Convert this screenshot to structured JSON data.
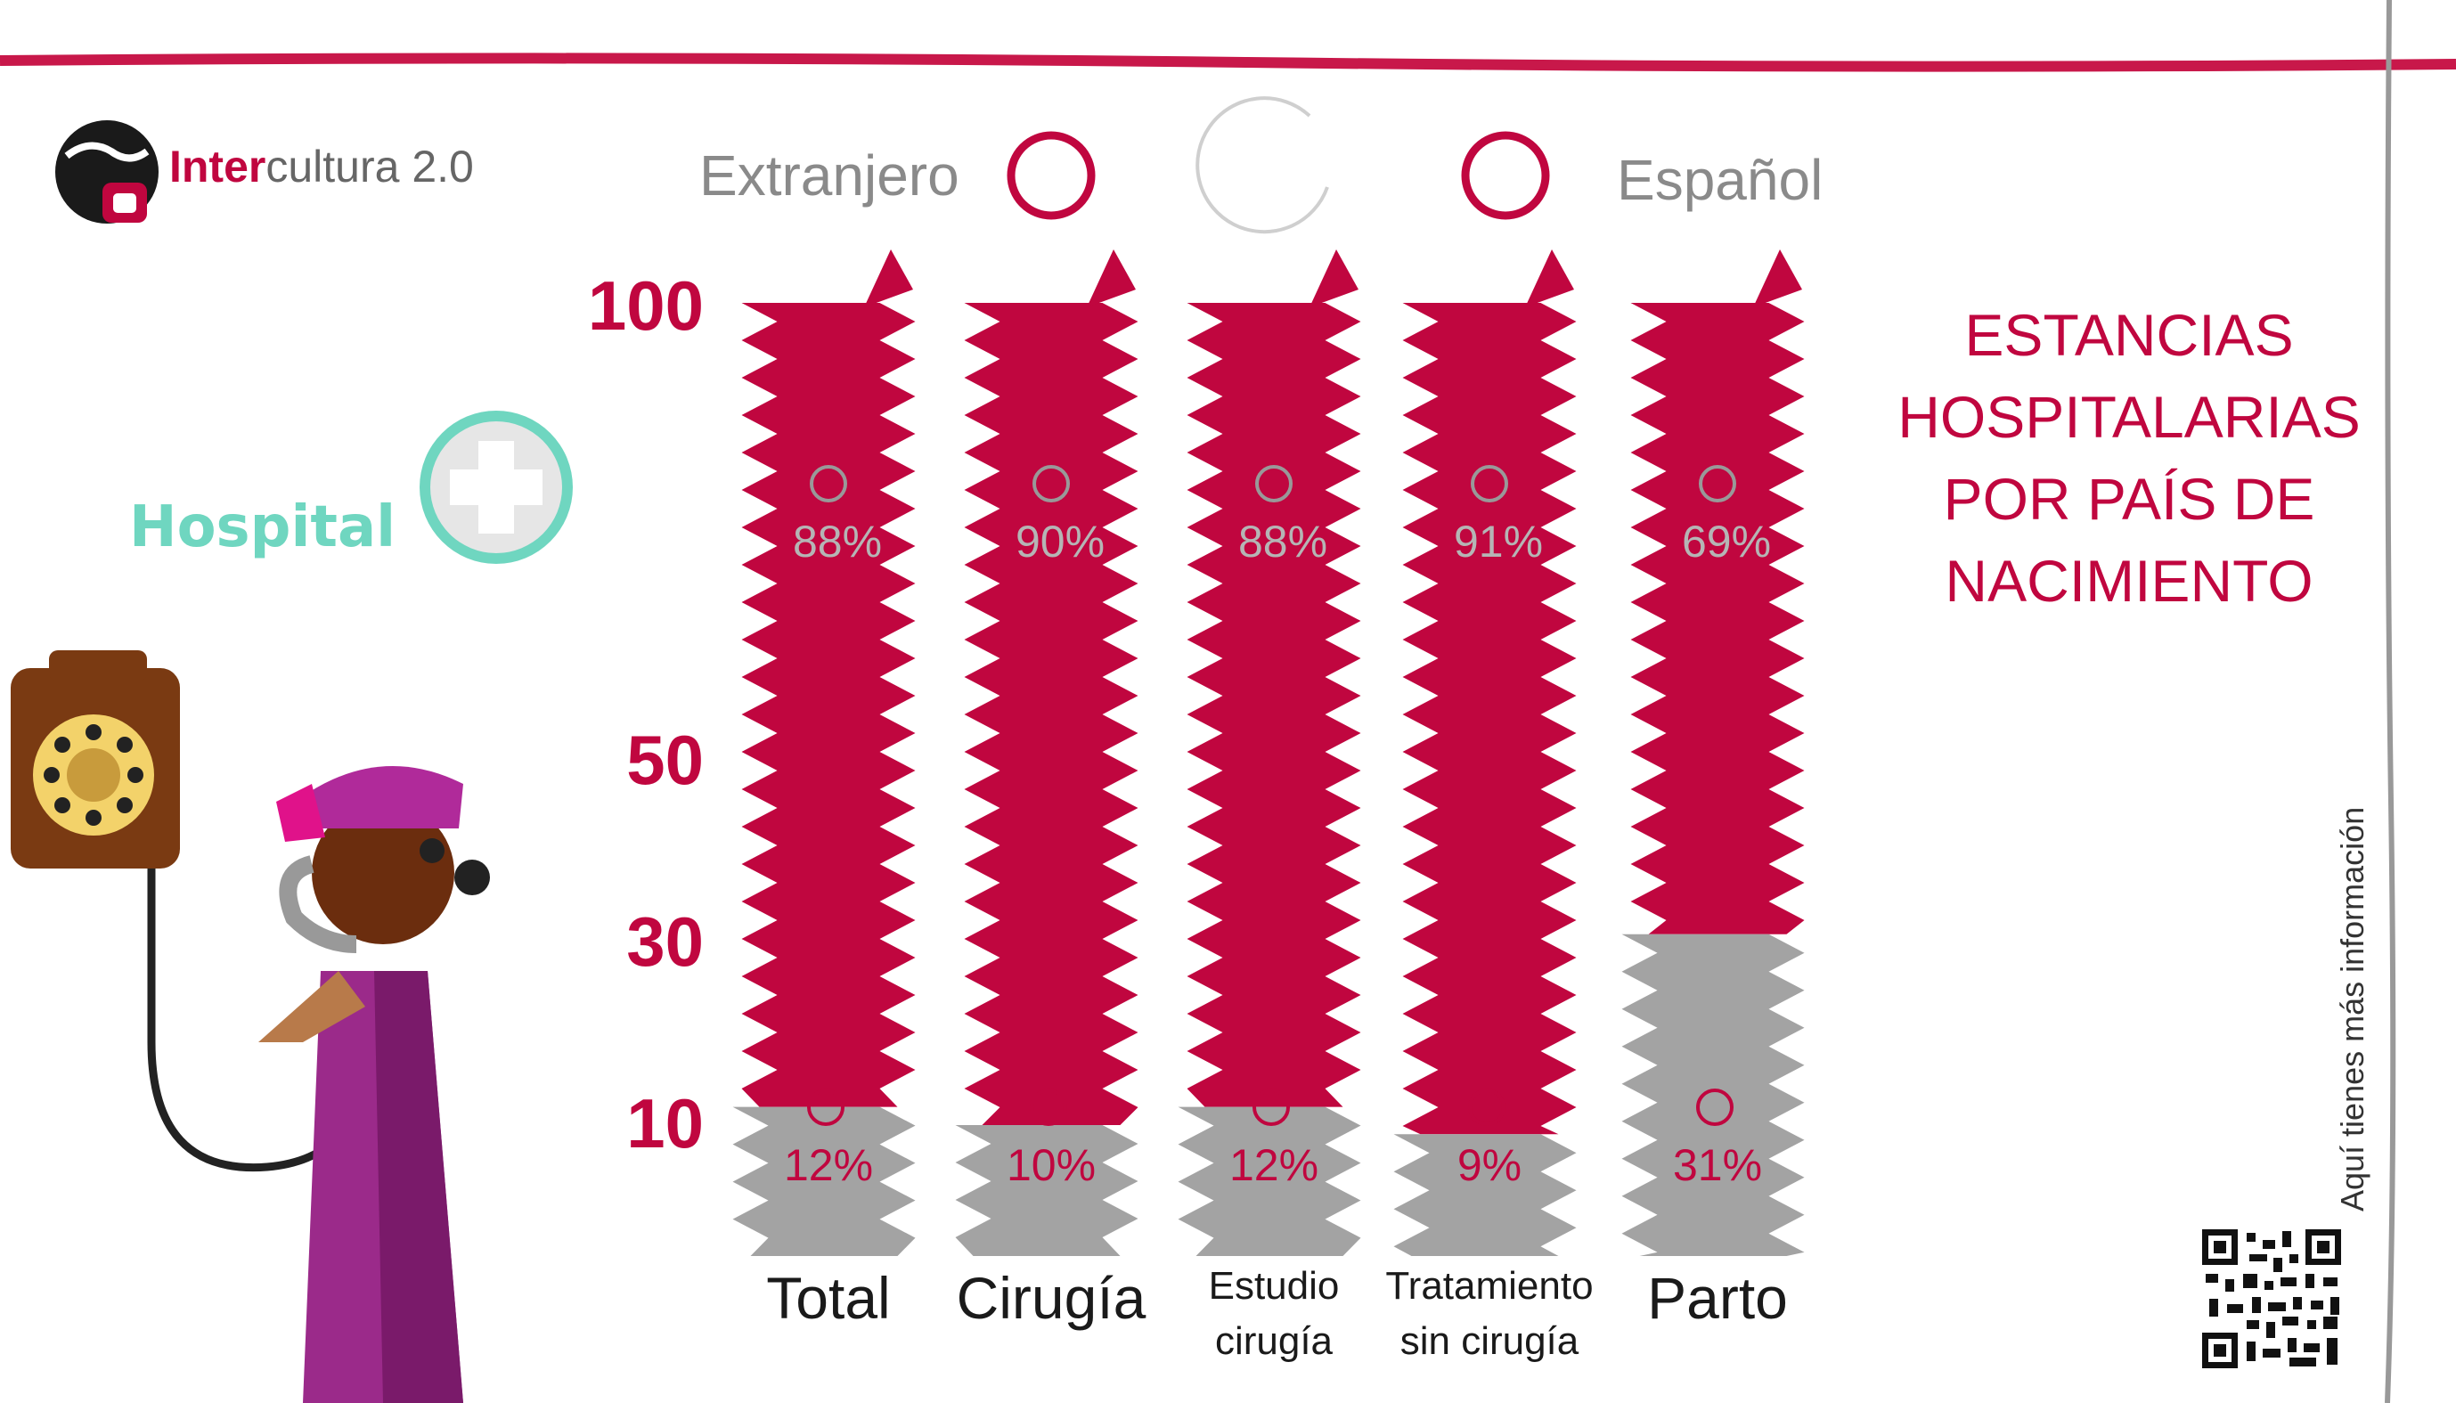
{
  "brand": {
    "name_bold": "Inter",
    "name_rest": "cultura 2.0"
  },
  "legend": {
    "foreign": "Extranjero",
    "spanish": "Español"
  },
  "title_lines": [
    "ESTANCIAS",
    "HOSPITALARIAS",
    "POR PAÍS DE",
    "NACIMIENTO"
  ],
  "hospital_label": "Hospital",
  "side_note": "Aquí tienes más información",
  "colors": {
    "foreign": "#c0063f",
    "spanish": "#a3a3a3",
    "accent": "#c8184a",
    "hospital": "#6fd6c0"
  },
  "chart_data": {
    "type": "bar",
    "stacked": true,
    "y_ticks": [
      100,
      50,
      30,
      10
    ],
    "categories": [
      [
        "Total"
      ],
      [
        "Cirugía"
      ],
      [
        "Estudio",
        "cirugía"
      ],
      [
        "Tratamiento",
        "sin cirugía"
      ],
      [
        "Parto"
      ]
    ],
    "series": [
      {
        "name": "Español",
        "values": [
          12,
          10,
          12,
          9,
          31
        ],
        "labels": [
          "12%",
          "10%",
          "12%",
          "9%",
          "31%"
        ]
      },
      {
        "name": "Extranjero",
        "values": [
          88,
          90,
          88,
          91,
          69
        ],
        "labels": [
          "88%",
          "90%",
          "88%",
          "91%",
          "69%"
        ]
      }
    ],
    "ylim": [
      0,
      100
    ],
    "legend_position": "top"
  }
}
